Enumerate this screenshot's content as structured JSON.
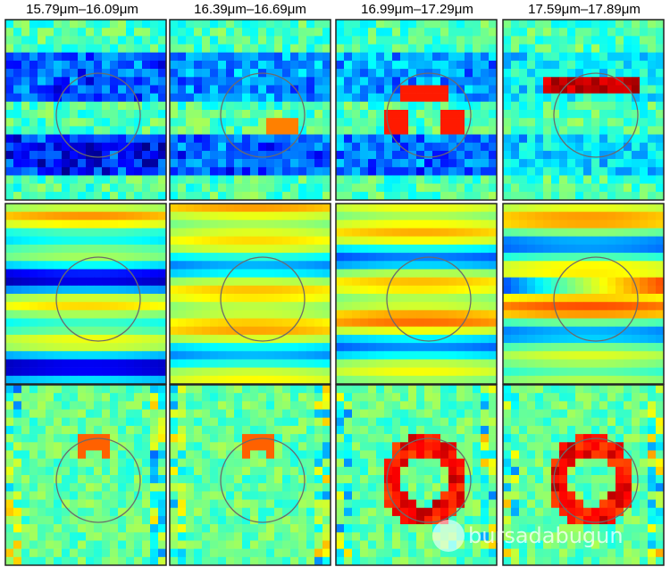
{
  "columns": [
    "15.79μm–16.09μm",
    "16.39μm–16.69μm",
    "16.99μm–17.29μm",
    "17.59μm–17.89μm"
  ],
  "watermark": "bursadabugun"
}
